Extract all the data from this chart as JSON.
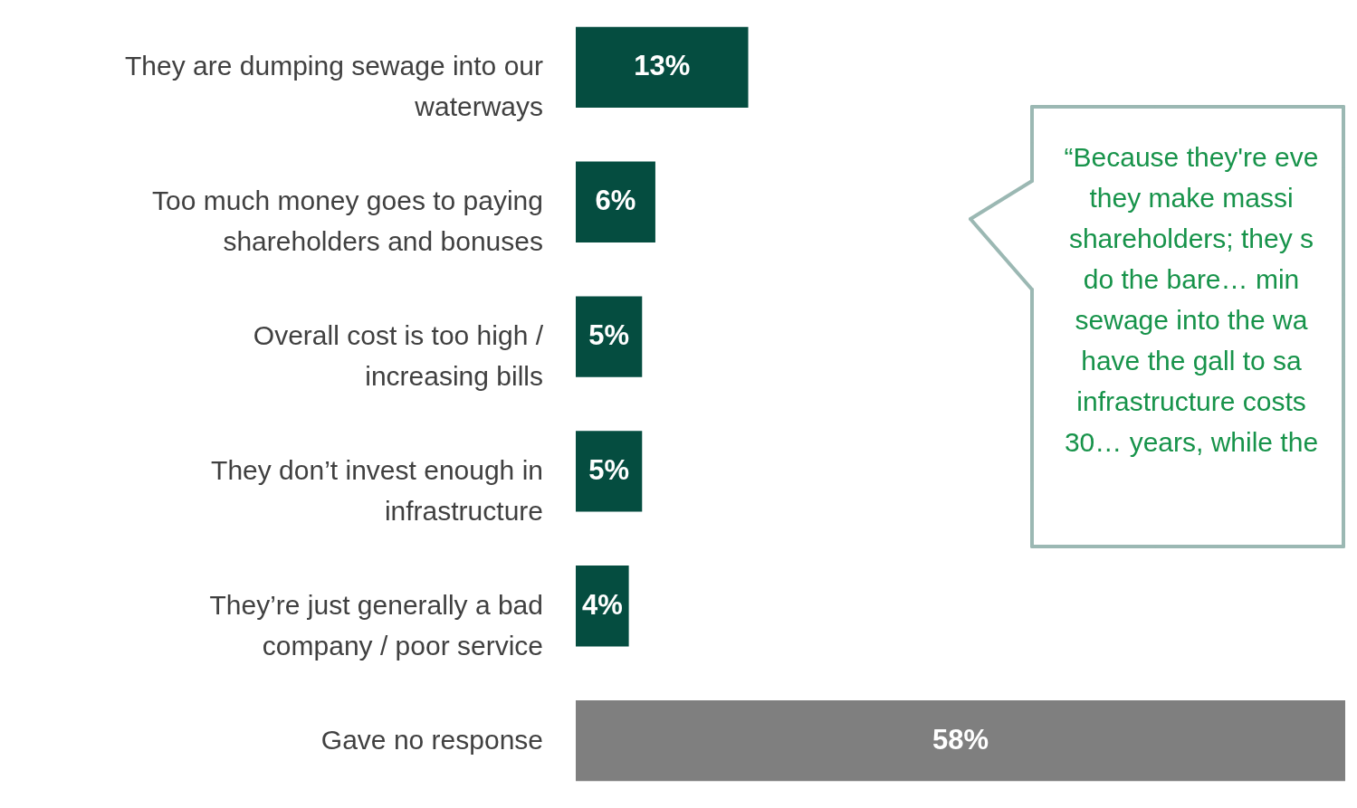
{
  "chart_data": {
    "type": "bar",
    "orientation": "horizontal",
    "categories": [
      "They are dumping sewage into our waterways",
      "Too much money goes to paying shareholders and bonuses",
      "Overall cost is too high / increasing bills",
      "They don’t invest enough in infrastructure",
      "They’re just generally a bad company / poor service",
      "Gave no response"
    ],
    "values": [
      13,
      6,
      5,
      5,
      4,
      58
    ],
    "value_labels": [
      "13%",
      "6%",
      "5%",
      "5%",
      "4%",
      "58%"
    ],
    "colors": [
      "#054d40",
      "#054d40",
      "#054d40",
      "#054d40",
      "#054d40",
      "#7f7f7f"
    ],
    "annotations": [
      "“Because they're eve\nthey make massi\nshareholders; they s\ndo the bare… min\nsewage into the wa\nhave the gall to sa\ninfrastructure costs\n30… years, while the"
    ]
  }
}
